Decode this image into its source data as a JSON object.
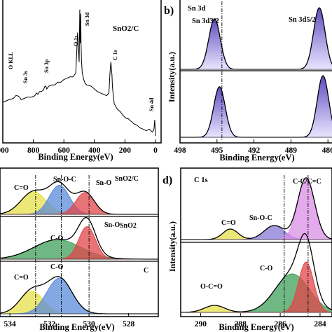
{
  "chart_data": [
    {
      "panel": "a",
      "type": "line",
      "xlabel": "Binding Energy(eV)",
      "ylabel": "",
      "xlim": [
        1000,
        0
      ],
      "ylim": [
        0,
        100
      ],
      "xticks": [
        "000",
        "800",
        "600",
        "400",
        "200",
        "0"
      ],
      "xtick_values": [
        1000,
        800,
        600,
        400,
        200,
        0
      ],
      "series": [
        {
          "name": "SnO2/C",
          "x": [
            1000,
            960,
            930,
            915,
            905,
            890,
            880,
            860,
            840,
            810,
            790,
            780,
            770,
            760,
            750,
            735,
            725,
            718,
            712,
            700,
            680,
            660,
            640,
            620,
            600,
            580,
            560,
            540,
            522,
            510,
            500,
            496,
            493,
            490,
            487,
            485,
            480,
            470,
            460,
            450,
            420,
            400,
            380,
            360,
            340,
            320,
            305,
            298,
            292,
            285,
            282,
            278,
            270,
            250,
            230,
            210,
            200,
            190,
            180,
            160,
            140,
            120,
            100,
            80,
            60,
            40,
            20,
            10,
            5,
            0
          ],
          "y": [
            28,
            30,
            31,
            33,
            33,
            32,
            30,
            31,
            32,
            32,
            33,
            35,
            34,
            36,
            36,
            37,
            40,
            40,
            38,
            40,
            41,
            41,
            43,
            43,
            45,
            46,
            47,
            47,
            50,
            80,
            58,
            97,
            72,
            94,
            70,
            60,
            50,
            45,
            42,
            41,
            40,
            38,
            36,
            35,
            34,
            33,
            35,
            50,
            58,
            48,
            40,
            35,
            27,
            23,
            21,
            18,
            17,
            16,
            16,
            14,
            12,
            11,
            9,
            8,
            7,
            8,
            6,
            8,
            15,
            3
          ]
        }
      ],
      "annotations": [
        "SnO2/C",
        "O KLL",
        "Sn 3s",
        "Sn 3p",
        "O 1s",
        "Sn 3d",
        "C 1s",
        "Sn 4d"
      ]
    },
    {
      "panel": "b",
      "type": "area",
      "title": "Sn 3d",
      "xlabel": "Binding Energy(eV)",
      "ylabel": "Intensity(a.u.)",
      "xlim": [
        498,
        485.5
      ],
      "xticks": [
        "498",
        "495",
        "492",
        "489",
        "486"
      ],
      "xtick_values": [
        498,
        495,
        492,
        489,
        486
      ],
      "reference_line": 494.6,
      "annotations": [
        "Sn 3d",
        "Sn 3d3/2",
        "Sn 3d5/2"
      ],
      "series": [
        {
          "name": "",
          "peaks": [
            {
              "center": 495.2,
              "height": 0.82,
              "fwhm": 1.1
            },
            {
              "center": 486.7,
              "height": 1.0,
              "fwhm": 1.1
            }
          ]
        },
        {
          "name": "",
          "peaks": [
            {
              "center": 494.8,
              "height": 0.82,
              "fwhm": 1.1
            },
            {
              "center": 486.4,
              "height": 1.0,
              "fwhm": 1.1
            }
          ]
        }
      ]
    },
    {
      "panel": "c",
      "type": "area",
      "xlabel": "Binding Energy(eV)",
      "ylabel": "",
      "xlim": [
        534.5,
        526.5
      ],
      "xticks": [
        "534",
        "532",
        "530",
        "528"
      ],
      "xtick_values": [
        534,
        532,
        530,
        528
      ],
      "reference_lines": [
        532.7,
        531.4,
        530.0
      ],
      "series": [
        {
          "name": "SnO2/C",
          "components": [
            {
              "label": "C=O",
              "center": 532.8,
              "height": 0.62,
              "fwhm": 1.5
            },
            {
              "label": "Sn-O-C",
              "center": 531.5,
              "height": 0.8,
              "fwhm": 1.2
            },
            {
              "label": "Sn-O",
              "center": 530.2,
              "height": 0.6,
              "fwhm": 1.1
            }
          ]
        },
        {
          "name": "SnO2",
          "components": [
            {
              "label": "C-O",
              "center": 531.6,
              "height": 0.45,
              "fwhm": 2.8
            },
            {
              "label": "Sn-O",
              "center": 530.1,
              "height": 0.75,
              "fwhm": 1.0
            }
          ]
        },
        {
          "name": "C",
          "components": [
            {
              "label": "C=O",
              "center": 532.9,
              "height": 0.52,
              "fwhm": 1.4
            },
            {
              "label": "C-O",
              "center": 531.5,
              "height": 0.82,
              "fwhm": 1.5
            }
          ]
        }
      ]
    },
    {
      "panel": "d",
      "type": "area",
      "title": "C 1s",
      "xlabel": "Binding Energy(eV)",
      "ylabel": "Intensity(a.u.)",
      "xlim": [
        291,
        283.4
      ],
      "xticks": [
        "290",
        "288",
        "286",
        "284"
      ],
      "xtick_values": [
        290,
        288,
        286,
        284
      ],
      "reference_lines": [
        285.8,
        284.6
      ],
      "series": [
        {
          "name": "",
          "components": [
            {
              "label": "C=O",
              "center": 288.5,
              "height": 0.15,
              "fwhm": 0.9
            },
            {
              "label": "Sn-O-C",
              "center": 286.3,
              "height": 0.2,
              "fwhm": 1.2
            },
            {
              "label": "C-C/C=C",
              "center": 284.7,
              "height": 0.88,
              "fwhm": 1.0
            }
          ]
        },
        {
          "name": "",
          "components": [
            {
              "label": "O-C=O",
              "center": 289.3,
              "height": 0.1,
              "fwhm": 1.2
            },
            {
              "label": "C-O",
              "center": 285.4,
              "height": 0.55,
              "fwhm": 2.0
            },
            {
              "label": "",
              "center": 284.7,
              "height": 0.72,
              "fwhm": 0.9
            }
          ]
        }
      ]
    }
  ],
  "panel_labels": {
    "b": "b)",
    "d": "d)"
  },
  "text": {
    "a_title": "SnO2/C",
    "a_okll": "O KLL",
    "a_sn3s": "Sn 3s",
    "a_sn3p": "Sn 3p",
    "a_o1s": "O 1s",
    "a_sn3d": "Sn 3d",
    "a_c1s": "C 1s",
    "a_sn4d": "Sn 4d",
    "b_title": "Sn 3d",
    "b_p1": "Sn 3d3/2",
    "b_p2": "Sn 3d5/2",
    "c_s1": "SnO2/C",
    "c_s2": "SnO2",
    "c_s3": "C",
    "c_co1": "C=O",
    "c_snoc": "Sn-O-C",
    "c_sno1": "Sn-O",
    "c_co2": "C-O",
    "c_sno2": "Sn-O",
    "c_co3": "C=O",
    "c_co4": "C-O",
    "d_title": "C 1s",
    "d_co": "C=O",
    "d_snoc": "Sn-O-C",
    "d_cc": "C-C/C=C",
    "d_oco": "O-C=O",
    "d_co2": "C-O"
  },
  "colors": {
    "purple": "#8a7ad6",
    "yellow": "#e6e04a",
    "blue": "#5b8bd9",
    "red": "#e0464a",
    "green": "#3f9f5a",
    "pink": "#d98ee6"
  }
}
